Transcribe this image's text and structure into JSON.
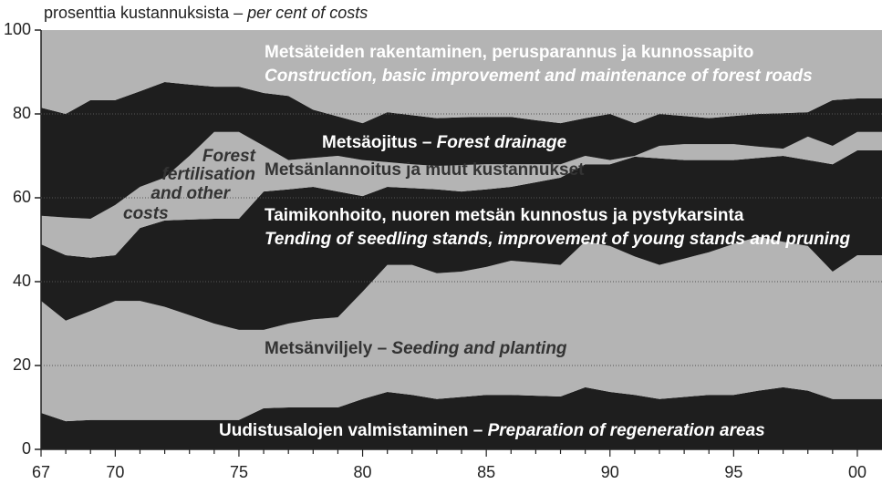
{
  "chart_data": {
    "type": "stacked_area",
    "ylabel": "prosenttia kustannuksista",
    "ylabel_en": "per cent of costs",
    "dash": "–",
    "categories": [
      "67",
      null,
      null,
      "70",
      null,
      null,
      null,
      null,
      "75",
      null,
      null,
      null,
      null,
      "80",
      null,
      null,
      null,
      null,
      "85",
      null,
      null,
      null,
      null,
      "90",
      null,
      null,
      null,
      null,
      "95",
      null,
      null,
      null,
      null,
      "00"
    ],
    "ylim": [
      0,
      100
    ],
    "yticks": [
      0,
      20,
      40,
      60,
      80,
      100
    ],
    "grid": true,
    "series": [
      {
        "name": "Uudistusalojen valmistaminen",
        "name_en": "Preparation of regeneration areas",
        "color": "#1e1e1e",
        "values": [
          8.7,
          6.7,
          7,
          7,
          7,
          7,
          7,
          7,
          7,
          9.8,
          10,
          10,
          10,
          12,
          13.7,
          13,
          12,
          12.5,
          13,
          13,
          12.8,
          12.6,
          14.8,
          13.7,
          13,
          12,
          12.5,
          13,
          13,
          14,
          14.8,
          14,
          12,
          12
        ]
      },
      {
        "name": "Metsänviljely",
        "name_en": "Seeding and planting",
        "color": "#b4b4b4",
        "values": [
          26.7,
          24,
          26,
          28.4,
          28.4,
          27,
          25,
          23,
          21.5,
          18.7,
          20,
          21,
          21.5,
          25.6,
          30.3,
          31,
          30,
          29.9,
          30.5,
          32,
          31.7,
          31.4,
          34.8,
          34.8,
          33,
          32,
          33,
          34,
          36,
          36.7,
          34.7,
          34.5,
          30.4,
          34.3
        ]
      },
      {
        "name": "Taimikonhoito, nuoren metsän kunnostus ja pystykarsinta",
        "name_en": "Tending of seedling stands, improvement of young stands and pruning",
        "color": "#1e1e1e",
        "values": [
          13.5,
          15.6,
          12.7,
          10.9,
          17.4,
          20.6,
          22.8,
          25,
          26.5,
          33,
          32,
          31.6,
          30,
          22.8,
          18.6,
          18.3,
          20,
          19.1,
          18.5,
          17.6,
          19.2,
          20.8,
          18.4,
          19.5,
          23.8,
          25.4,
          23.5,
          22,
          20,
          18.8,
          20.5,
          20.5,
          25.6,
          25
        ]
      },
      {
        "name": "Metsänlannoitus ja muut kustannukset",
        "name_en_lines": [
          "Forest",
          "fertilisation",
          "and other",
          "costs"
        ],
        "color": "#b4b4b4",
        "values": [
          6.8,
          9,
          9.3,
          12,
          9.8,
          10.2,
          15.2,
          20.7,
          20.7,
          10.9,
          7,
          6.9,
          8.5,
          8.6,
          5.9,
          5.7,
          5.6,
          6.3,
          6,
          5.4,
          4.3,
          3.2,
          2,
          1,
          0.2,
          3,
          3.8,
          3.8,
          3.8,
          2.7,
          1.7,
          5.6,
          4.4,
          4.4
        ]
      },
      {
        "name": "Metsäojitus",
        "name_en": "Forest drainage",
        "color": "#1e1e1e",
        "values": [
          25.8,
          24.7,
          28.3,
          25,
          22.8,
          22.8,
          17,
          10.8,
          10.8,
          12.6,
          15.3,
          11.5,
          9.4,
          8.8,
          11.9,
          11.7,
          11.4,
          11.4,
          11.3,
          11.3,
          10.5,
          9.8,
          9,
          11,
          7.8,
          7.6,
          6.7,
          6.2,
          6.7,
          7.8,
          8.5,
          5.8,
          10.9,
          8
        ]
      },
      {
        "name": "Metsäteiden rakentaminen, perusparannus ja kunnossapito",
        "name_en": "Construction, basic improvement and maintenance of forest roads",
        "color": "#b4b4b4",
        "values": [
          18.5,
          20,
          16.7,
          16.7,
          14.6,
          12.4,
          13,
          13.5,
          13.5,
          15,
          15.7,
          19,
          20.6,
          22.2,
          19.6,
          20.3,
          21,
          20.8,
          20.7,
          20.7,
          21.5,
          22.2,
          21,
          20,
          22.2,
          20,
          20.5,
          21,
          20.5,
          20,
          19.8,
          19.6,
          16.7,
          16.3
        ]
      }
    ]
  }
}
